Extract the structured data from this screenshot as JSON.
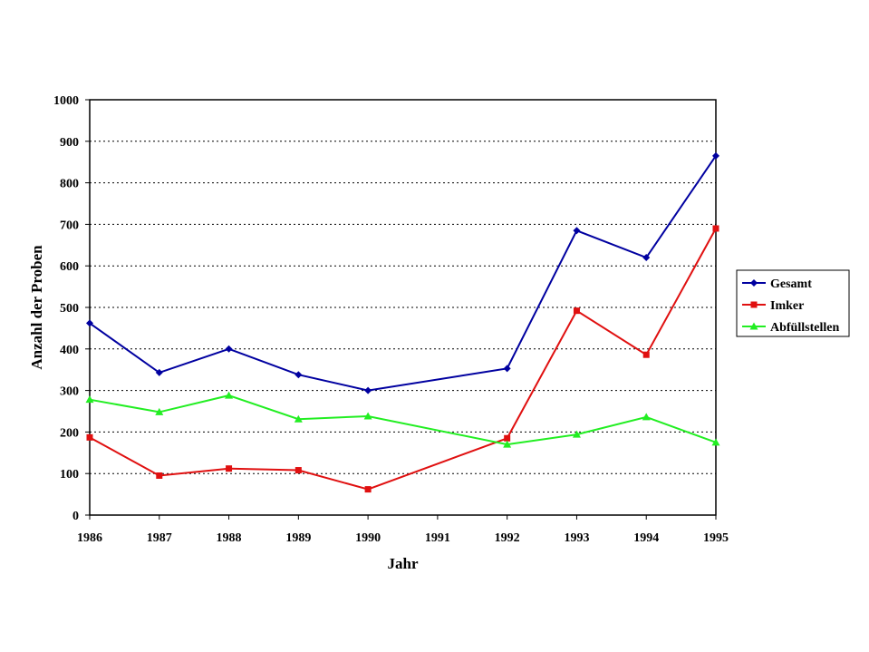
{
  "chart_data": {
    "type": "line",
    "title": "",
    "xlabel": "Jahr",
    "ylabel": "Anzahl der Proben",
    "categories": [
      "1986",
      "1987",
      "1988",
      "1989",
      "1990",
      "1991",
      "1992",
      "1993",
      "1994",
      "1995"
    ],
    "ylim": [
      0,
      1000
    ],
    "yticks": [
      "0",
      "100",
      "200",
      "300",
      "400",
      "500",
      "600",
      "700",
      "800",
      "900",
      "1000"
    ],
    "grid": "horizontal dotted",
    "legend_position": "right",
    "series": [
      {
        "name": "Gesamt",
        "color": "#0000a0",
        "marker": "diamond",
        "values": [
          462,
          343,
          400,
          338,
          300,
          null,
          353,
          685,
          620,
          865
        ]
      },
      {
        "name": "Imker",
        "color": "#e01010",
        "marker": "square",
        "values": [
          187,
          95,
          112,
          108,
          62,
          null,
          185,
          492,
          386,
          690
        ]
      },
      {
        "name": "Abfüllstellen",
        "color": "#22ee22",
        "marker": "triangle",
        "values": [
          278,
          248,
          288,
          231,
          238,
          null,
          170,
          194,
          236,
          175
        ]
      }
    ]
  }
}
